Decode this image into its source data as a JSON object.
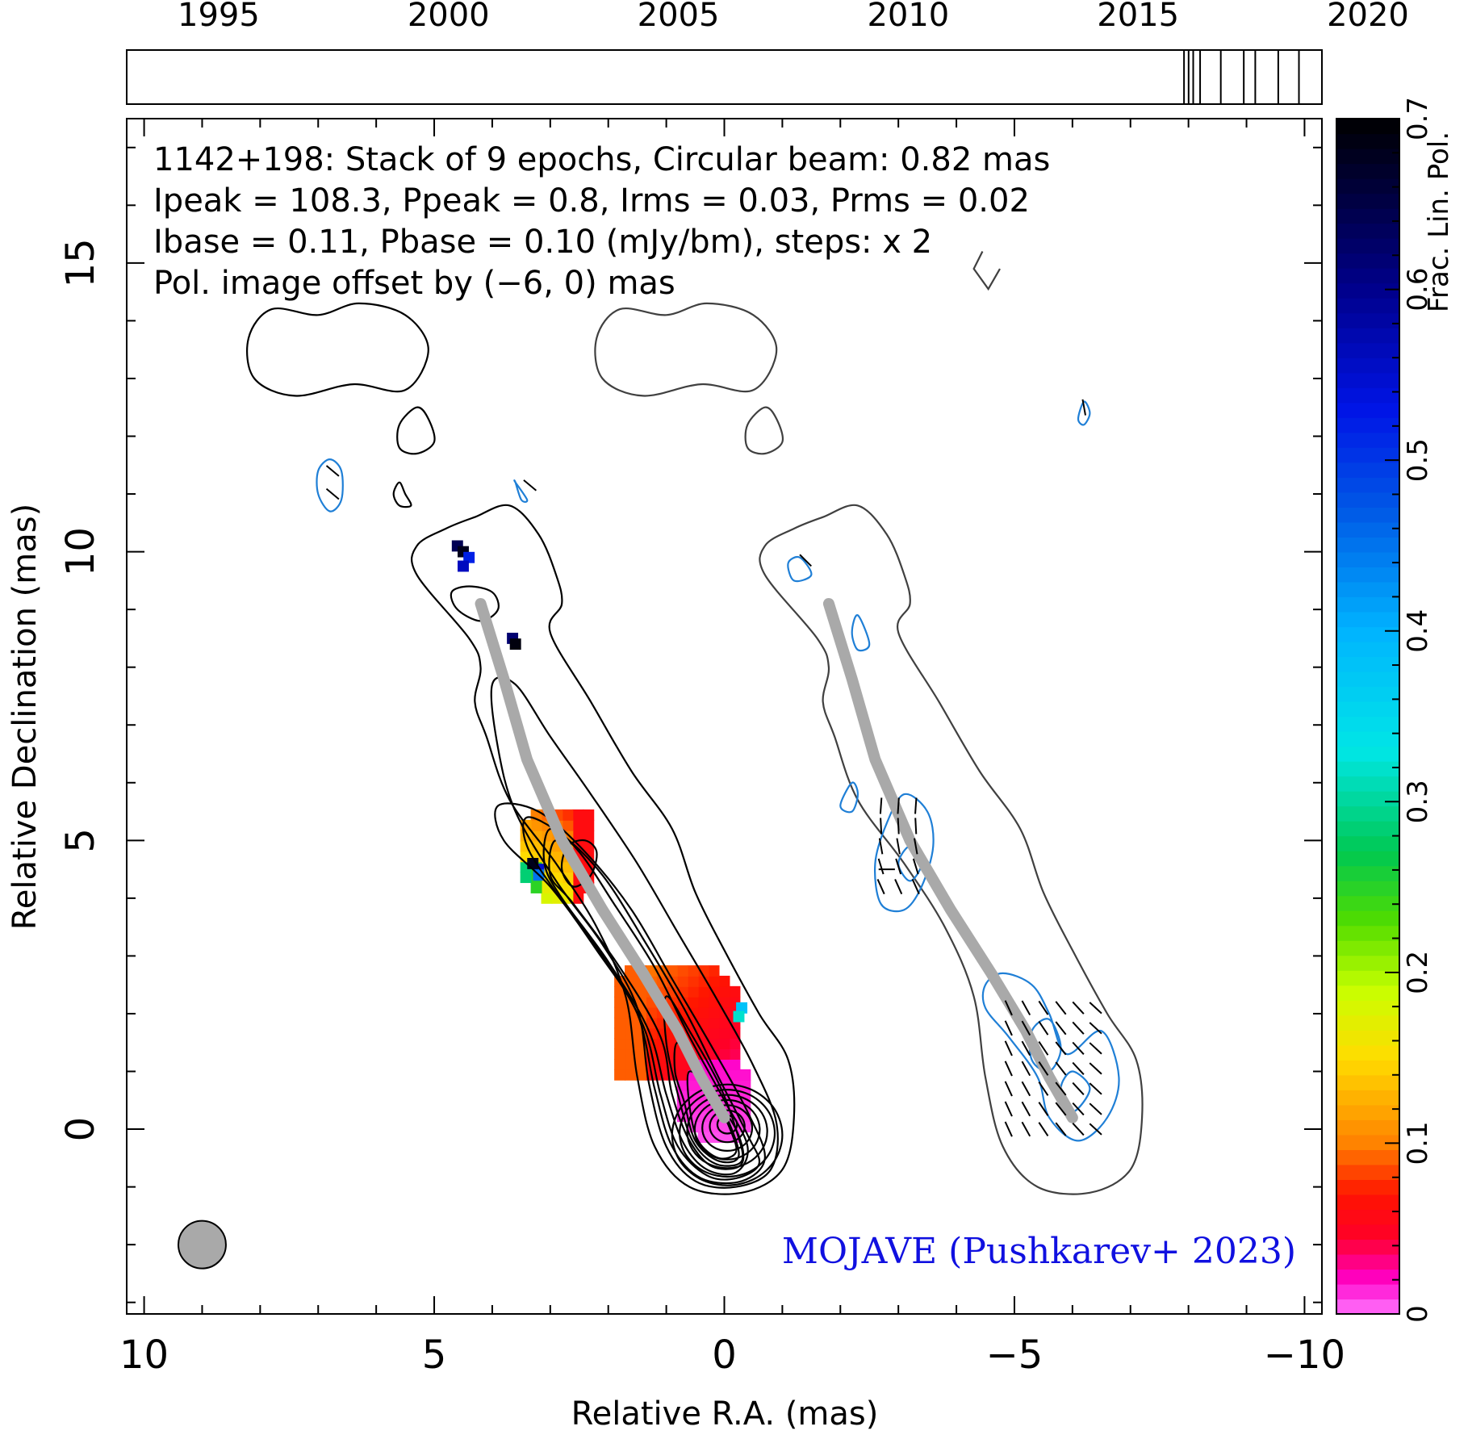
{
  "chart_data": {
    "type": "heatmap",
    "source": "1142+198",
    "header_lines": [
      "1142+198: Stack of 9 epochs, Circular beam: 0.82 mas",
      "Ipeak = 108.3, Ppeak = 0.8, Irms = 0.03, Prms = 0.02",
      "Ibase = 0.11, Pbase = 0.10 (mJy/bm), steps: x 2"
    ],
    "offset_note": "Pol. image offset by (−6, 0) mas",
    "credit": "MOJAVE (Pushkarev+ 2023)",
    "xlabel": "Relative R.A. (mas)",
    "ylabel": "Relative Declination (mas)",
    "colorbar_label": "Frac. Lin. Pol.",
    "xlim": [
      10.3,
      -10.3
    ],
    "ylim": [
      -3.2,
      17.5
    ],
    "x_ticks": [
      {
        "value": 10,
        "label": "10"
      },
      {
        "value": 5,
        "label": "5"
      },
      {
        "value": 0,
        "label": "0"
      },
      {
        "value": -5,
        "label": "−5"
      },
      {
        "value": -10,
        "label": "−10"
      }
    ],
    "y_ticks": [
      {
        "value": 0,
        "label": "0"
      },
      {
        "value": 5,
        "label": "5"
      },
      {
        "value": 10,
        "label": "10"
      },
      {
        "value": 15,
        "label": "15"
      }
    ],
    "colorbar_range": [
      0,
      0.7
    ],
    "colorbar_ticks": [
      {
        "value": 0,
        "label": "0"
      },
      {
        "value": 0.1,
        "label": "0.1"
      },
      {
        "value": 0.2,
        "label": "0.2"
      },
      {
        "value": 0.3,
        "label": "0.3"
      },
      {
        "value": 0.4,
        "label": "0.4"
      },
      {
        "value": 0.5,
        "label": "0.5"
      },
      {
        "value": 0.6,
        "label": "0.6"
      },
      {
        "value": 0.7,
        "label": "0.7"
      }
    ],
    "timeline": {
      "range": [
        1993.0,
        2019.0
      ],
      "year_labels": [
        {
          "value": 1995,
          "label": "1995"
        },
        {
          "value": 2000,
          "label": "2000"
        },
        {
          "value": 2005,
          "label": "2005"
        },
        {
          "value": 2010,
          "label": "2010"
        },
        {
          "value": 2015,
          "label": "2015"
        },
        {
          "value": 2020,
          "label": "2020"
        }
      ],
      "epochs": [
        2016.0,
        2016.1,
        2016.2,
        2016.35,
        2016.8,
        2017.3,
        2017.55,
        2018.05,
        2018.5
      ]
    },
    "beam_fwhm_mas": 0.82,
    "beam_position": [
      9.0,
      -2.0
    ],
    "ridge_line": [
      [
        0,
        0.2
      ],
      [
        0.4,
        0.9
      ],
      [
        0.8,
        1.7
      ],
      [
        1.4,
        2.7
      ],
      [
        2.1,
        3.8
      ],
      [
        2.8,
        5.0
      ],
      [
        3.4,
        6.4
      ],
      [
        3.8,
        7.8
      ],
      [
        4.2,
        9.1
      ]
    ],
    "pol_offset_mas": [
      -6,
      0
    ],
    "colors": {
      "stokes_i_contours": "#000000",
      "pol_panel_i_contours": "#404040",
      "pol_contours": "#1f7fd6",
      "ridge": "#a9a9a9",
      "offset_note": "#1f7fd6",
      "credit": "#1010e0",
      "beam": "#a9a9a9"
    }
  }
}
